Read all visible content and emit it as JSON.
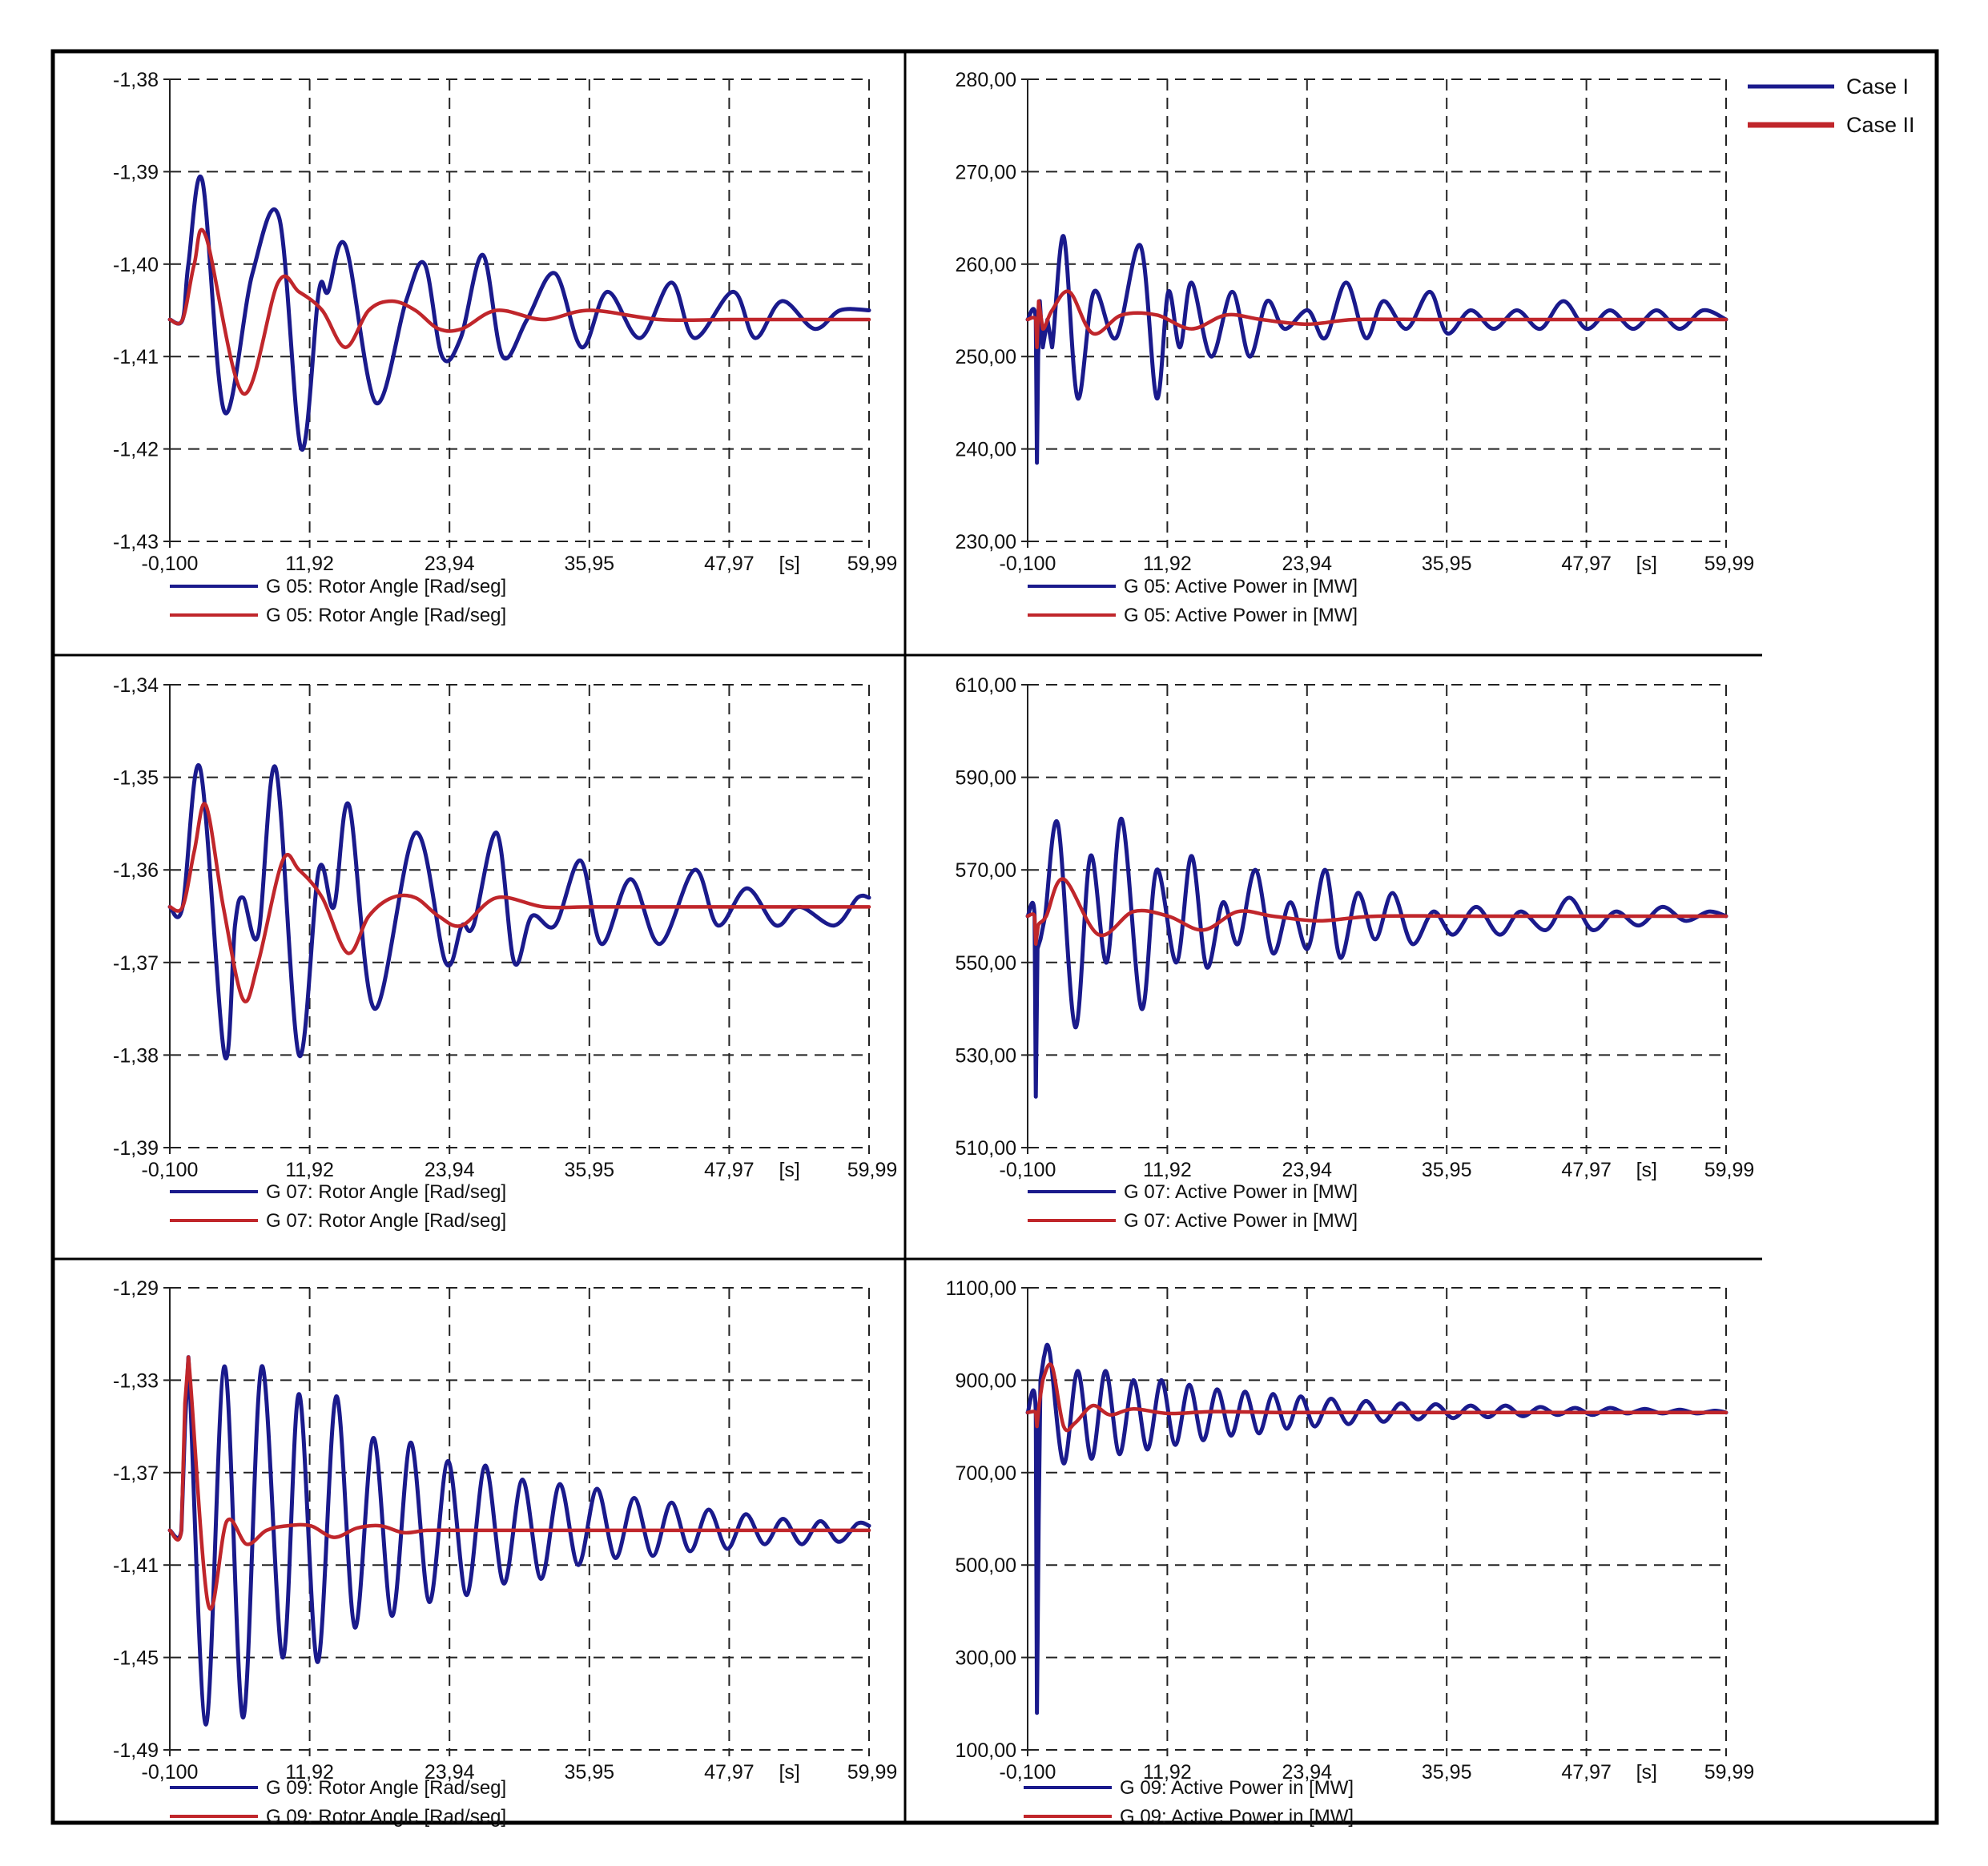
{
  "colors": {
    "case1": "#1a1a8c",
    "case2": "#c0262b",
    "frame": "#000000",
    "background": "#ffffff"
  },
  "legend": {
    "entries": [
      "Case I",
      "Case II"
    ]
  },
  "chart_data": [
    {
      "type": "line",
      "panel": "top-left",
      "x_ticks": [
        "-0,100",
        "11,92",
        "23,94",
        "35,95",
        "47,97",
        "59,99"
      ],
      "x_unit": "[s]",
      "y_ticks": [
        "-1,43",
        "-1,42",
        "-1,41",
        "-1,40",
        "-1,39",
        "-1,38"
      ],
      "xlim": [
        -0.1,
        59.99
      ],
      "ylim": [
        -1.43,
        -1.38
      ],
      "grid": true,
      "series": [
        {
          "name": "G 05: Rotor Angle [Rad/seg]",
          "color_key": "case1",
          "x": [
            -0.1,
            1.0,
            1.5,
            2.7,
            4.6,
            7.0,
            9.3,
            11.2,
            12.7,
            13.5,
            15.0,
            17.6,
            20.2,
            21.8,
            23.3,
            24.9,
            26.8,
            28.5,
            30.6,
            33.0,
            35.3,
            37.5,
            40.3,
            43.0,
            45.0,
            48.3,
            50.2,
            52.5,
            55.3,
            57.5,
            59.99
          ],
          "y": [
            -1.406,
            -1.406,
            -1.4,
            -1.391,
            -1.416,
            -1.401,
            -1.395,
            -1.42,
            -1.403,
            -1.403,
            -1.398,
            -1.415,
            -1.404,
            -1.4,
            -1.41,
            -1.408,
            -1.399,
            -1.41,
            -1.406,
            -1.401,
            -1.409,
            -1.403,
            -1.408,
            -1.402,
            -1.408,
            -1.403,
            -1.408,
            -1.404,
            -1.407,
            -1.405,
            -1.405
          ]
        },
        {
          "name": "G 05: Rotor Angle [Rad/seg]",
          "color_key": "case2",
          "x": [
            -0.1,
            1.0,
            2.0,
            3.0,
            6.2,
            9.2,
            11.0,
            13.0,
            15.0,
            17.0,
            19.0,
            21.0,
            23.0,
            25.0,
            28.0,
            32.0,
            36.0,
            42.0,
            48.0,
            55.0,
            59.99
          ],
          "y": [
            -1.406,
            -1.406,
            -1.4,
            -1.397,
            -1.414,
            -1.402,
            -1.403,
            -1.405,
            -1.409,
            -1.405,
            -1.404,
            -1.405,
            -1.407,
            -1.407,
            -1.405,
            -1.406,
            -1.405,
            -1.406,
            -1.406,
            -1.406,
            -1.406
          ]
        }
      ]
    },
    {
      "type": "line",
      "panel": "top-right",
      "x_ticks": [
        "-0,100",
        "11,92",
        "23,94",
        "35,95",
        "47,97",
        "59,99"
      ],
      "x_unit": "[s]",
      "y_ticks": [
        "230,00",
        "240,00",
        "250,00",
        "260,00",
        "270,00",
        "280,00"
      ],
      "xlim": [
        -0.1,
        59.99
      ],
      "ylim": [
        230,
        280
      ],
      "grid": true,
      "series": [
        {
          "name": "G 05: Active Power in [MW]",
          "color_key": "case1",
          "x": [
            -0.1,
            0.6,
            0.7,
            0.8,
            0.95,
            1.2,
            1.6,
            2.0,
            3.0,
            4.2,
            5.6,
            7.5,
            9.6,
            11.0,
            12.0,
            13.0,
            14.0,
            15.7,
            17.5,
            19.0,
            20.5,
            22.0,
            24.0,
            25.5,
            27.3,
            29.0,
            30.5,
            32.5,
            34.5,
            36.0,
            38.0,
            40.0,
            42.0,
            44.0,
            46.0,
            48.0,
            50.0,
            52.0,
            54.0,
            56.0,
            58.0,
            59.99
          ],
          "y": [
            254,
            254,
            238.5,
            250,
            256,
            251,
            254,
            251,
            263,
            245.5,
            257,
            252,
            262,
            245.5,
            257,
            251,
            258,
            250,
            257,
            250,
            256,
            253,
            255,
            252,
            258,
            252,
            256,
            253,
            257,
            252.5,
            255,
            253,
            255,
            253,
            256,
            253,
            255,
            253,
            255,
            253,
            255,
            254
          ]
        },
        {
          "name": "G 05: Active Power in [MW]",
          "color_key": "case2",
          "x": [
            -0.1,
            0.6,
            0.7,
            0.85,
            1.2,
            2.0,
            3.5,
            5.5,
            8.0,
            11.0,
            14.0,
            17.0,
            20.0,
            24.0,
            28.0,
            35.0,
            45.0,
            59.99
          ],
          "y": [
            254,
            254,
            251,
            256,
            253,
            255,
            257,
            252.5,
            254.5,
            254.5,
            253,
            254.5,
            254,
            253.5,
            254,
            254,
            254,
            254
          ]
        }
      ]
    },
    {
      "type": "line",
      "panel": "middle-left",
      "x_ticks": [
        "-0,100",
        "11,92",
        "23,94",
        "35,95",
        "47,97",
        "59,99"
      ],
      "x_unit": "[s]",
      "y_ticks": [
        "-1,39",
        "-1,38",
        "-1,37",
        "-1,36",
        "-1,35",
        "-1,34"
      ],
      "xlim": [
        -0.1,
        59.99
      ],
      "ylim": [
        -1.39,
        -1.34
      ],
      "grid": true,
      "series": [
        {
          "name": "G 07: Rotor Angle [Rad/seg]",
          "color_key": "case1",
          "x": [
            -0.1,
            1.0,
            2.5,
            4.6,
            5.5,
            6.2,
            7.5,
            9.0,
            11.0,
            12.7,
            14.0,
            15.3,
            17.5,
            21.0,
            23.6,
            25.0,
            26.0,
            28.0,
            29.5,
            31.0,
            33.0,
            35.2,
            37.0,
            39.5,
            42.0,
            45.0,
            47.0,
            49.5,
            52.0,
            54.0,
            57.0,
            59.0,
            59.99
          ],
          "y": [
            -1.364,
            -1.364,
            -1.349,
            -1.38,
            -1.366,
            -1.363,
            -1.367,
            -1.349,
            -1.38,
            -1.36,
            -1.364,
            -1.353,
            -1.375,
            -1.356,
            -1.37,
            -1.366,
            -1.366,
            -1.356,
            -1.37,
            -1.365,
            -1.366,
            -1.359,
            -1.368,
            -1.361,
            -1.368,
            -1.36,
            -1.366,
            -1.362,
            -1.366,
            -1.364,
            -1.366,
            -1.363,
            -1.363
          ]
        },
        {
          "name": "G 07: Rotor Angle [Rad/seg]",
          "color_key": "case2",
          "x": [
            -0.1,
            1.0,
            2.0,
            3.0,
            4.5,
            6.2,
            7.5,
            9.6,
            11.0,
            13.0,
            15.2,
            17.0,
            19.0,
            21.0,
            23.0,
            25.0,
            28.0,
            32.0,
            36.0,
            42.0,
            50.0,
            59.99
          ],
          "y": [
            -1.364,
            -1.364,
            -1.358,
            -1.353,
            -1.364,
            -1.374,
            -1.37,
            -1.359,
            -1.36,
            -1.363,
            -1.369,
            -1.365,
            -1.363,
            -1.363,
            -1.365,
            -1.366,
            -1.363,
            -1.364,
            -1.364,
            -1.364,
            -1.364,
            -1.364
          ]
        }
      ]
    },
    {
      "type": "line",
      "panel": "middle-right",
      "x_ticks": [
        "-0,100",
        "11,92",
        "23,94",
        "35,95",
        "47,97",
        "59,99"
      ],
      "x_unit": "[s]",
      "y_ticks": [
        "510,00",
        "530,00",
        "550,00",
        "570,00",
        "590,00",
        "610,00"
      ],
      "xlim": [
        -0.1,
        59.99
      ],
      "ylim": [
        510,
        610
      ],
      "grid": true,
      "series": [
        {
          "name": "G 07: Active Power in [MW]",
          "color_key": "case1",
          "x": [
            -0.1,
            0.5,
            0.6,
            0.75,
            1.0,
            1.4,
            2.5,
            4.0,
            5.3,
            6.7,
            8.0,
            9.7,
            11.0,
            12.7,
            14.0,
            15.3,
            16.7,
            18.0,
            19.5,
            21.0,
            22.5,
            24.0,
            25.5,
            26.8,
            28.3,
            29.8,
            31.3,
            33.0,
            34.8,
            36.5,
            38.5,
            40.5,
            42.3,
            44.5,
            46.5,
            48.5,
            50.5,
            52.5,
            54.5,
            56.5,
            58.5,
            59.99
          ],
          "y": [
            560,
            560,
            521,
            553,
            555,
            560,
            580,
            536,
            573,
            550,
            581,
            540,
            570,
            550,
            573,
            549,
            563,
            554,
            570,
            552,
            563,
            553,
            570,
            551,
            565,
            555,
            565,
            554,
            561,
            556,
            562,
            556,
            561,
            557,
            564,
            557,
            561,
            558,
            562,
            559,
            561,
            560
          ]
        },
        {
          "name": "G 07: Active Power in [MW]",
          "color_key": "case2",
          "x": [
            -0.1,
            0.5,
            0.6,
            0.8,
            1.5,
            3.0,
            6.0,
            9.0,
            12.0,
            15.0,
            18.0,
            21.0,
            25.0,
            30.0,
            40.0,
            59.99
          ],
          "y": [
            560,
            560,
            554,
            558,
            560,
            568,
            556,
            561,
            560,
            557,
            561,
            560,
            559,
            560,
            560,
            560
          ]
        }
      ]
    },
    {
      "type": "line",
      "panel": "bottom-left",
      "x_ticks": [
        "-0,100",
        "11,92",
        "23,94",
        "35,95",
        "47,97",
        "59,99"
      ],
      "x_unit": "[s]",
      "y_ticks": [
        "-1,49",
        "-1,45",
        "-1,41",
        "-1,37",
        "-1,33",
        "-1,29"
      ],
      "xlim": [
        -0.1,
        59.99
      ],
      "ylim": [
        -1.49,
        -1.29
      ],
      "grid": true,
      "series": [
        {
          "name": "G 09: Rotor Angle [Rad/seg]",
          "color_key": "case1",
          "x": [
            -0.1,
            0.9,
            1.2,
            1.5,
            3.0,
            4.6,
            6.2,
            7.8,
            9.6,
            11.0,
            12.6,
            14.2,
            15.8,
            17.4,
            19.0,
            20.6,
            22.2,
            23.8,
            25.4,
            27.0,
            28.6,
            30.2,
            31.8,
            33.4,
            35.0,
            36.6,
            38.2,
            39.8,
            41.4,
            43.0,
            44.6,
            46.2,
            47.8,
            49.4,
            51.0,
            52.6,
            54.2,
            55.8,
            57.4,
            59.0,
            59.99
          ],
          "y": [
            -1.395,
            -1.395,
            -1.35,
            -1.32,
            -1.479,
            -1.324,
            -1.476,
            -1.324,
            -1.45,
            -1.336,
            -1.452,
            -1.337,
            -1.437,
            -1.355,
            -1.432,
            -1.357,
            -1.426,
            -1.365,
            -1.423,
            -1.367,
            -1.418,
            -1.373,
            -1.416,
            -1.375,
            -1.41,
            -1.377,
            -1.407,
            -1.381,
            -1.406,
            -1.383,
            -1.404,
            -1.386,
            -1.403,
            -1.388,
            -1.401,
            -1.39,
            -1.401,
            -1.391,
            -1.4,
            -1.392,
            -1.393
          ]
        },
        {
          "name": "G 09: Rotor Angle [Rad/seg]",
          "color_key": "case2",
          "x": [
            -0.1,
            0.9,
            1.2,
            1.5,
            3.2,
            4.8,
            6.5,
            8.2,
            10.0,
            12.0,
            14.0,
            16.0,
            18.0,
            20.0,
            22.0,
            25.0,
            30.0,
            35.0,
            40.0,
            50.0,
            59.99
          ],
          "y": [
            -1.395,
            -1.395,
            -1.34,
            -1.32,
            -1.427,
            -1.391,
            -1.401,
            -1.395,
            -1.393,
            -1.393,
            -1.398,
            -1.394,
            -1.393,
            -1.396,
            -1.395,
            -1.395,
            -1.395,
            -1.395,
            -1.395,
            -1.395,
            -1.395
          ]
        }
      ]
    },
    {
      "type": "line",
      "panel": "bottom-right",
      "x_ticks": [
        "-0,100",
        "11,92",
        "23,94",
        "35,95",
        "47,97",
        "59,99"
      ],
      "x_unit": "[s]",
      "y_ticks": [
        "100,00",
        "300,00",
        "500,00",
        "700,00",
        "900,00",
        "1100,00"
      ],
      "xlim": [
        -0.1,
        59.99
      ],
      "ylim": [
        100,
        1100
      ],
      "grid": true,
      "series": [
        {
          "name": "G 09: Active Power in [MW]",
          "color_key": "case1",
          "x": [
            -0.1,
            0.6,
            0.7,
            0.85,
            1.0,
            1.3,
            1.8,
            3.0,
            4.2,
            5.4,
            6.6,
            7.8,
            9.0,
            10.2,
            11.4,
            12.6,
            13.8,
            15.0,
            16.2,
            17.4,
            18.6,
            19.8,
            21.0,
            22.2,
            23.4,
            24.6,
            26.0,
            27.5,
            29.0,
            30.5,
            32.0,
            33.5,
            35.0,
            36.5,
            38.0,
            39.5,
            41.0,
            42.5,
            44.0,
            45.5,
            47.0,
            48.5,
            50.0,
            51.5,
            53.0,
            54.5,
            56.0,
            57.5,
            59.0,
            59.99
          ],
          "y": [
            830,
            830,
            180,
            600,
            900,
            950,
            960,
            720,
            920,
            730,
            920,
            740,
            900,
            750,
            900,
            760,
            890,
            770,
            880,
            780,
            875,
            785,
            870,
            795,
            865,
            800,
            860,
            805,
            855,
            810,
            850,
            815,
            848,
            818,
            845,
            820,
            845,
            822,
            842,
            825,
            840,
            825,
            840,
            828,
            838,
            828,
            836,
            828,
            834,
            830
          ]
        },
        {
          "name": "G 09: Active Power in [MW]",
          "color_key": "case2",
          "x": [
            -0.1,
            0.6,
            0.7,
            0.9,
            1.2,
            2.0,
            3.0,
            4.0,
            5.5,
            7.0,
            9.0,
            12.0,
            16.0,
            22.0,
            30.0,
            40.0,
            59.99
          ],
          "y": [
            830,
            830,
            800,
            850,
            900,
            930,
            800,
            808,
            845,
            825,
            838,
            828,
            832,
            830,
            830,
            830,
            830
          ]
        }
      ]
    }
  ]
}
